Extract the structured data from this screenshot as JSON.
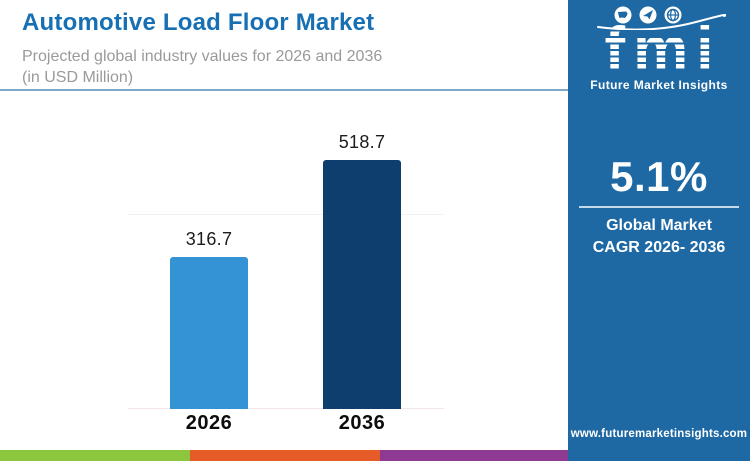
{
  "header": {
    "title": "Automotive Load Floor Market",
    "subtitle_line1": "Projected global industry values for 2026 and 2036",
    "subtitle_line2": "(in USD Million)"
  },
  "chart_data": {
    "type": "bar",
    "title": "Automotive Load Floor Market",
    "subtitle": "Projected global industry values for 2026 and 2036 (in USD Million)",
    "unit": "USD Million",
    "categories": [
      "2026",
      "2036"
    ],
    "values": [
      316.7,
      518.7
    ],
    "value_labels": [
      "316.7",
      "518.7"
    ],
    "bar_colors": [
      "#3493d4",
      "#0e3e6e"
    ],
    "ylim": [
      0,
      560
    ],
    "gridlines": "single faint horizontal line",
    "legend": "none"
  },
  "side_panel": {
    "bg_color": "#1e69a4",
    "logo_text": "fmi",
    "logo_tagline": "Future Market Insights",
    "logo_icons": [
      "us-map-icon",
      "paper-plane-icon",
      "globe-icon"
    ],
    "cagr_value": "5.1%",
    "cagr_line1": "Global Market",
    "cagr_line2": "CAGR 2026- 2036",
    "website": "www.futuremarketinsights.com"
  },
  "footer": {
    "stripe_colors": [
      "#8cc63e",
      "#e65c28",
      "#8e3a92",
      "#173a60"
    ]
  }
}
